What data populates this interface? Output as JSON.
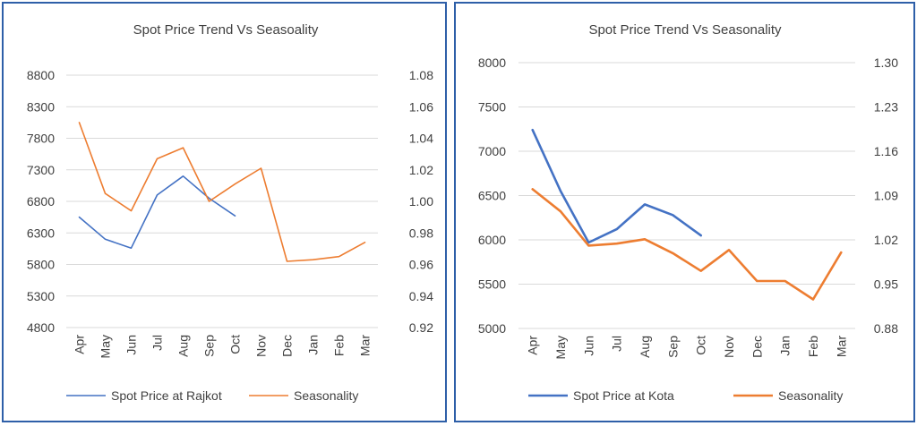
{
  "chart_data": [
    {
      "type": "line",
      "title": "Spot Price Trend Vs Seasoality",
      "categories": [
        "Apr",
        "May",
        "Jun",
        "Jul",
        "Aug",
        "Sep",
        "Oct",
        "Nov",
        "Dec",
        "Jan",
        "Feb",
        "Mar"
      ],
      "y_left": {
        "ylim": [
          4800,
          8800
        ],
        "ticks": [
          "4800",
          "5300",
          "5800",
          "6300",
          "6800",
          "7300",
          "7800",
          "8300",
          "8800"
        ]
      },
      "y_right": {
        "ylim": [
          0.92,
          1.08
        ],
        "ticks": [
          "0.92",
          "0.94",
          "0.96",
          "0.98",
          "1.00",
          "1.02",
          "1.04",
          "1.06",
          "1.08"
        ]
      },
      "series": [
        {
          "name": "Spot Price at Rajkot",
          "axis": "left",
          "color": "#4472c4",
          "values": [
            6550,
            6200,
            6060,
            6900,
            7200,
            6850,
            6570,
            null,
            null,
            null,
            null,
            null
          ]
        },
        {
          "name": "Seasonality",
          "axis": "right",
          "color": "#ed7d31",
          "values": [
            1.05,
            1.005,
            0.994,
            1.027,
            1.034,
            1.0,
            1.011,
            1.021,
            0.962,
            0.963,
            0.965,
            0.974
          ]
        }
      ],
      "grid": true,
      "legend": "bottom"
    },
    {
      "type": "line",
      "title": "Spot Price Trend Vs Seasonality",
      "categories": [
        "Apr",
        "May",
        "Jun",
        "Jul",
        "Aug",
        "Sep",
        "Oct",
        "Nov",
        "Dec",
        "Jan",
        "Feb",
        "Mar"
      ],
      "y_left": {
        "ylim": [
          5000,
          8000
        ],
        "ticks": [
          "5000",
          "5500",
          "6000",
          "6500",
          "7000",
          "7500",
          "8000"
        ]
      },
      "y_right": {
        "ylim": [
          0.88,
          1.3
        ],
        "ticks": [
          "0.88",
          "0.95",
          "1.02",
          "1.09",
          "1.16",
          "1.23",
          "1.30"
        ]
      },
      "series": [
        {
          "name": "Spot Price at Kota",
          "axis": "left",
          "color": "#4472c4",
          "values": [
            7240,
            6550,
            5970,
            6120,
            6400,
            6280,
            6050,
            null,
            null,
            null,
            null,
            null
          ]
        },
        {
          "name": "Seasonality",
          "axis": "right",
          "color": "#ed7d31",
          "values": [
            1.1,
            1.065,
            1.011,
            1.014,
            1.021,
            0.999,
            0.971,
            1.004,
            0.955,
            0.955,
            0.926,
            1.0
          ]
        }
      ],
      "grid": true,
      "legend": "bottom"
    }
  ]
}
